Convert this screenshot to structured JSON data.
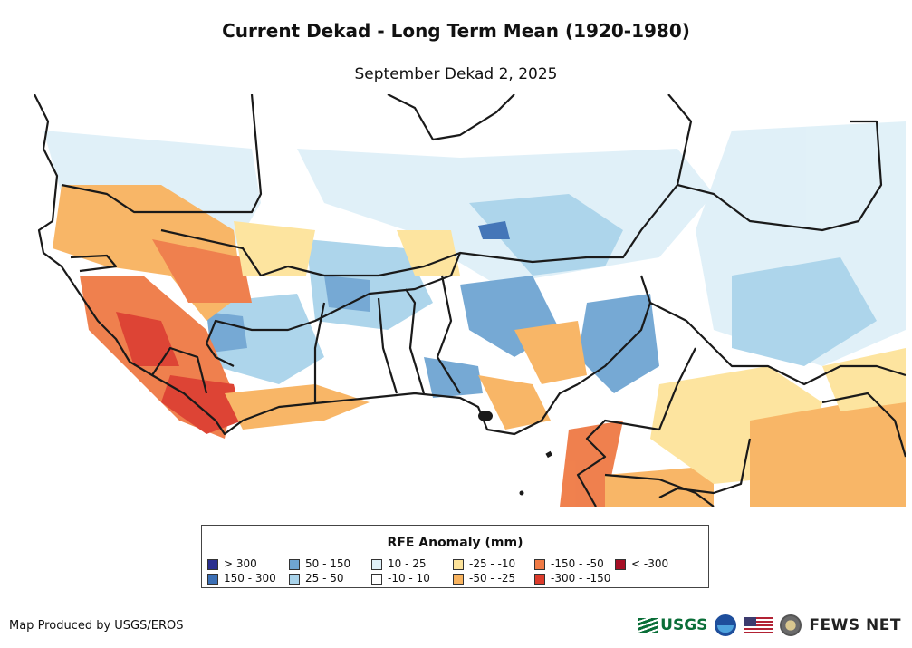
{
  "title": "Current Dekad - Long Term Mean (1920-1980)",
  "subtitle": "September Dekad 2, 2025",
  "legend": {
    "title": "RFE Anomaly (mm)",
    "items": [
      {
        "label": "> 300",
        "color": "#2a2f8f"
      },
      {
        "label": "150 - 300",
        "color": "#3b6fb5"
      },
      {
        "label": "50 - 150",
        "color": "#6fa5d2"
      },
      {
        "label": "25 - 50",
        "color": "#a9d3ea"
      },
      {
        "label": "10 - 25",
        "color": "#dff0f8"
      },
      {
        "label": "-10 - 10",
        "color": "#ffffff"
      },
      {
        "label": "-25 - -10",
        "color": "#fde39a"
      },
      {
        "label": "-50 - -25",
        "color": "#f8b35f"
      },
      {
        "label": "-150 - -50",
        "color": "#ef7a45"
      },
      {
        "label": "-300 - -150",
        "color": "#dc3b2b"
      },
      {
        "label": "< -300",
        "color": "#a50f25"
      }
    ]
  },
  "credit": "Map Produced by USGS/EROS",
  "logos": {
    "usgs": "USGS",
    "fews": "FEWS NET",
    "icons": [
      "usgs-logo",
      "noaa-logo",
      "us-flag-icon",
      "state-department-seal-icon"
    ]
  }
}
